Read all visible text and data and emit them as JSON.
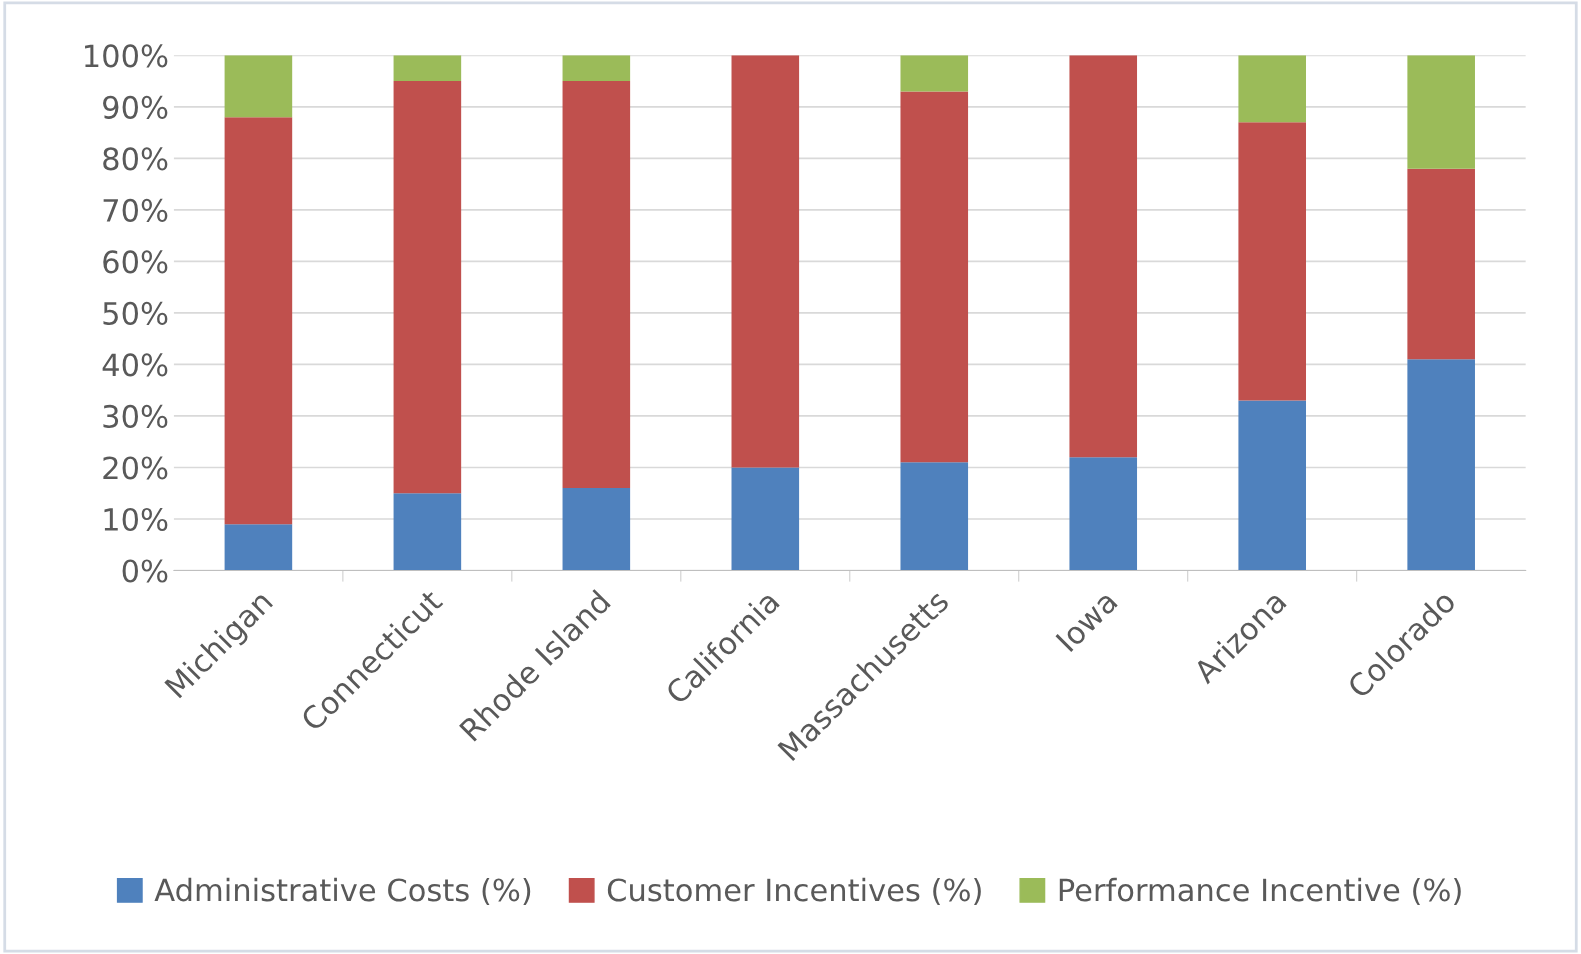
{
  "chart_data": {
    "type": "bar",
    "stacked": true,
    "categories": [
      "Michigan",
      "Connecticut",
      "Rhode Island",
      "California",
      "Massachusetts",
      "Iowa",
      "Arizona",
      "Colorado"
    ],
    "series": [
      {
        "name": "Administrative Costs (%)",
        "color": "#4f81bd",
        "values": [
          9,
          15,
          16,
          20,
          21,
          22,
          33,
          41
        ]
      },
      {
        "name": "Customer Incentives (%)",
        "color": "#c0504d",
        "values": [
          79,
          80,
          79,
          80,
          72,
          78,
          54,
          37
        ]
      },
      {
        "name": "Performance Incentive (%)",
        "color": "#9bbb59",
        "values": [
          12,
          5,
          5,
          0,
          7,
          0,
          13,
          22
        ]
      }
    ],
    "ylim": [
      0,
      100
    ],
    "yticks": [
      {
        "value": 0,
        "label": "0%"
      },
      {
        "value": 10,
        "label": "10%"
      },
      {
        "value": 20,
        "label": "20%"
      },
      {
        "value": 30,
        "label": "30%"
      },
      {
        "value": 40,
        "label": "40%"
      },
      {
        "value": 50,
        "label": "50%"
      },
      {
        "value": 60,
        "label": "60%"
      },
      {
        "value": 70,
        "label": "70%"
      },
      {
        "value": 80,
        "label": "80%"
      },
      {
        "value": 90,
        "label": "90%"
      },
      {
        "value": 100,
        "label": "100%"
      }
    ],
    "grid": "y",
    "legend": "bottom"
  }
}
